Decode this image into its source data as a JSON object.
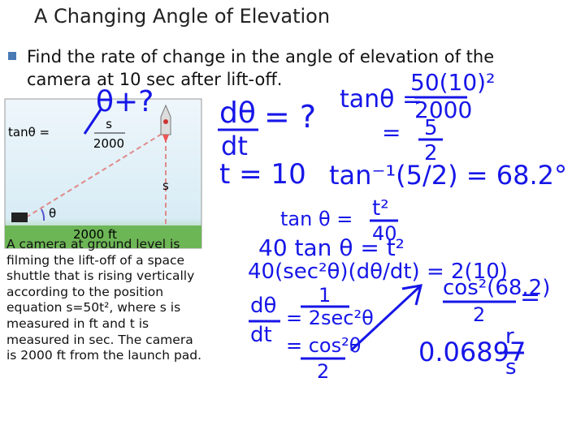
{
  "title": "A Changing Angle of Elevation",
  "prompt": "Find the rate of change in the angle of elevation of the camera at 10 sec after lift-off.",
  "figure": {
    "tan_label": "tanθ =",
    "tan_num": "s",
    "tan_den": "2000",
    "side_label": "s",
    "angle_label": "θ",
    "base_label": "2000 ft"
  },
  "description": "A camera at ground level is filming the lift-off of a space shuttle that is rising vertically according to the position equation s=50t², where s is measured in ft and t is measured in sec. The camera is 2000 ft from the launch pad.",
  "notes": [
    "θ+?",
    "dθ",
    "dt",
    "= ?",
    "t = 10",
    "tanθ =",
    "50(10)²",
    "2000",
    "=",
    "5",
    "2",
    "tan⁻¹(5/2) = 68.2°",
    "tan θ =",
    "t²",
    "40",
    "40 tan θ = t²",
    "40(sec²θ)(dθ/dt) = 2(10)",
    "dθ",
    "dt",
    "1",
    "= 2sec²θ",
    "= cos²θ",
    "2",
    "cos²(68.2)",
    "2",
    "=",
    "0.06897",
    "r",
    "s"
  ]
}
